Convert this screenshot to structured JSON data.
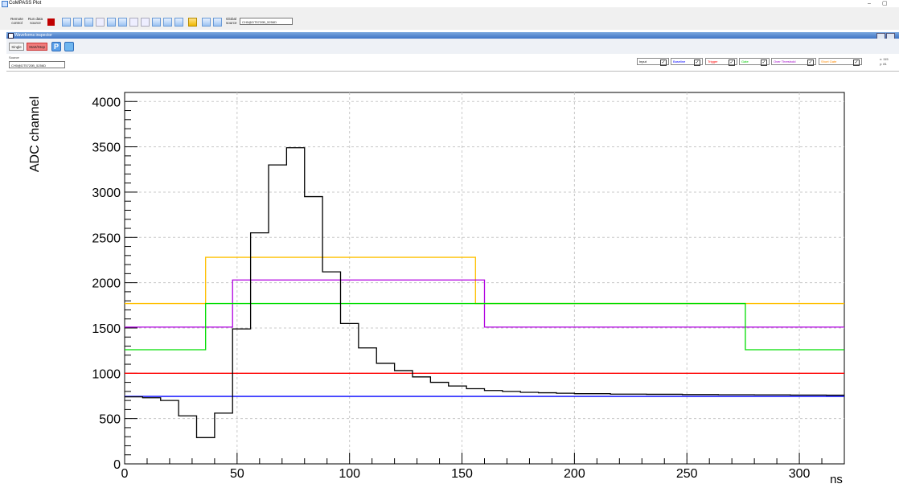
{
  "app": {
    "title": "CoMPASS Plot",
    "min_glyph": "–",
    "max_glyph": "▢"
  },
  "toolbar": {
    "remote_control_1": "Remote",
    "remote_control_2": "control",
    "run_data_source_1": "Run data",
    "run_data_source_2": "source",
    "global_source_1": "Global",
    "global_source_2": "source",
    "global_source_value": "CH0@DT5720B_5256D"
  },
  "inspector": {
    "title": "Waveforms inspector",
    "single_label": "Single",
    "startstop_label": "Start/Stop",
    "p_icon_glyph": "P",
    "source_label": "Source",
    "source_value": "CH0@DT5720B_5256D",
    "coords_x": "x: 115",
    "coords_y": "y: 81"
  },
  "traces": [
    {
      "label": "Input",
      "color": "#000000",
      "checked": true
    },
    {
      "label": "Baseline",
      "color": "#0000ff",
      "checked": true
    },
    {
      "label": "Trigger",
      "color": "#ff0000",
      "checked": true
    },
    {
      "label": "Gate",
      "color": "#00cc00",
      "checked": true
    },
    {
      "label": "Over Threshold",
      "color": "#a000c8",
      "checked": true
    },
    {
      "label": "Short Gate",
      "color": "#ff8a00",
      "checked": true
    }
  ],
  "chart_data": {
    "type": "line",
    "ylabel": "ADC channel",
    "xlabel": "ns",
    "xlim": [
      0,
      320
    ],
    "ylim": [
      0,
      4100
    ],
    "x_ticks": [
      0,
      50,
      100,
      150,
      200,
      250,
      300
    ],
    "y_ticks": [
      0,
      500,
      1000,
      1500,
      2000,
      2500,
      3000,
      3500,
      4000
    ],
    "grid": true,
    "series": [
      {
        "name": "Input",
        "color": "#000000",
        "step": true,
        "x": [
          0,
          8,
          16,
          24,
          32,
          40,
          48,
          56,
          64,
          72,
          80,
          88,
          96,
          104,
          112,
          120,
          128,
          136,
          144,
          152,
          160,
          168,
          176,
          184,
          192,
          200,
          216,
          232,
          248,
          264,
          280,
          296,
          312,
          320
        ],
        "y": [
          740,
          730,
          700,
          530,
          290,
          560,
          1490,
          2550,
          3300,
          3490,
          2950,
          2120,
          1550,
          1280,
          1110,
          1030,
          960,
          900,
          860,
          830,
          810,
          800,
          790,
          785,
          780,
          775,
          770,
          768,
          765,
          763,
          762,
          760,
          758,
          758
        ]
      },
      {
        "name": "Baseline",
        "color": "#0000ff",
        "step": true,
        "x": [
          0,
          320
        ],
        "y": [
          745,
          745
        ]
      },
      {
        "name": "Trigger",
        "color": "#ff0000",
        "step": true,
        "x": [
          0,
          320
        ],
        "y": [
          1000,
          1000
        ]
      },
      {
        "name": "Gate",
        "color": "#00dd00",
        "step": true,
        "x": [
          0,
          36,
          276,
          320
        ],
        "y": [
          1260,
          1770,
          1260,
          1260
        ]
      },
      {
        "name": "Over Threshold",
        "color": "#b000e0",
        "step": true,
        "x": [
          0,
          48,
          160,
          320
        ],
        "y": [
          1510,
          2030,
          1510,
          1510
        ]
      },
      {
        "name": "Short Gate",
        "color": "#ffc000",
        "step": true,
        "x": [
          0,
          36,
          156,
          320
        ],
        "y": [
          1770,
          2280,
          1770,
          1770
        ]
      }
    ]
  }
}
